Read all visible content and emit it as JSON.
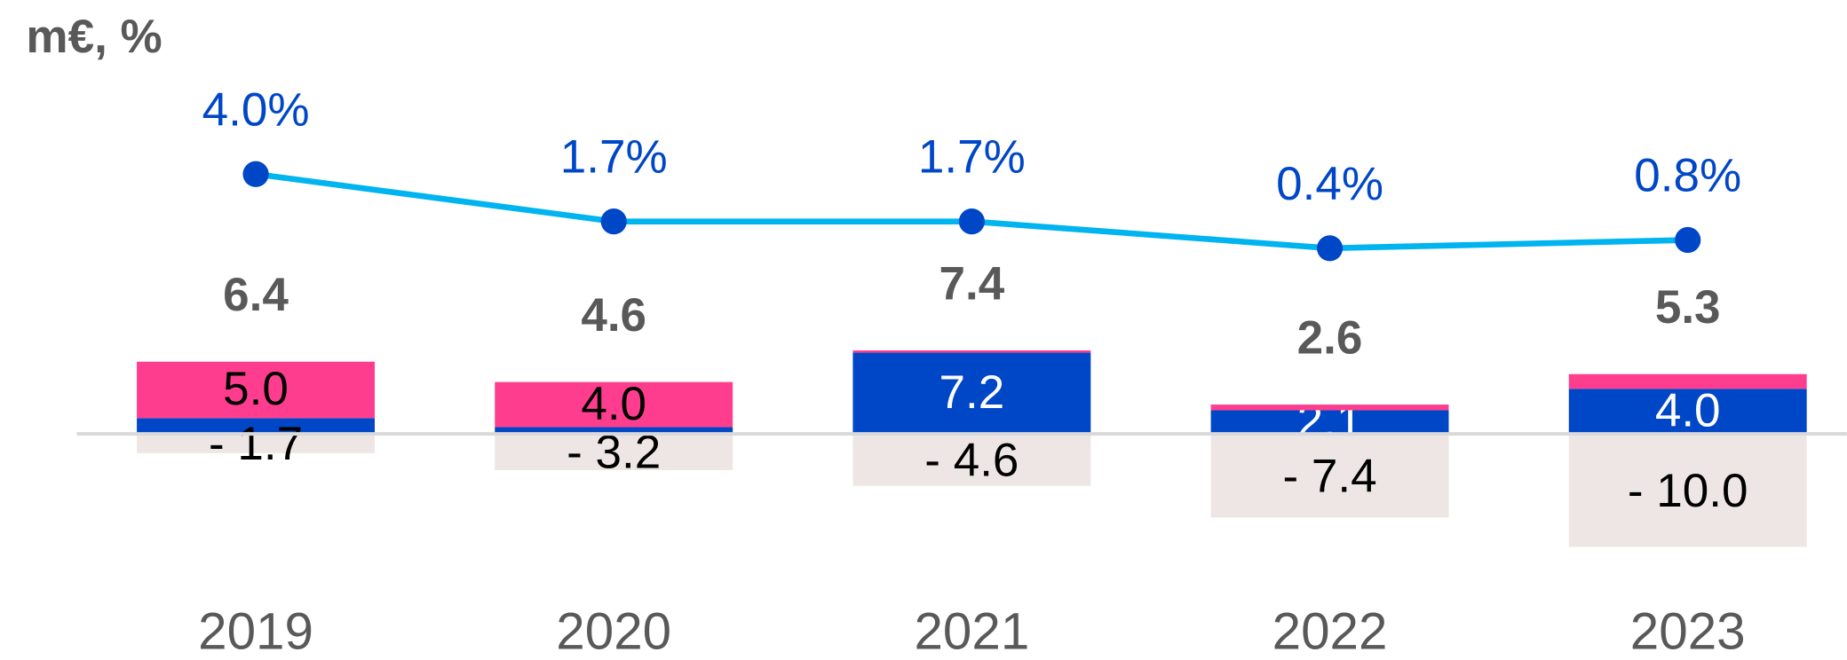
{
  "chart_data": {
    "type": "stacked-bar-line",
    "title": "m€, %",
    "categories": [
      "2019",
      "2020",
      "2021",
      "2022",
      "2023"
    ],
    "series": [
      {
        "name": "blue",
        "color": "#0047c8",
        "values": [
          1.4,
          0.6,
          7.2,
          2.1,
          4.0
        ],
        "value_labels": [
          null,
          null,
          "7.2",
          "2.1",
          "4.0"
        ]
      },
      {
        "name": "pink",
        "color": "#ff3d8f",
        "values": [
          5.0,
          4.0,
          0.2,
          0.5,
          1.3
        ],
        "value_labels": [
          "5.0",
          "4.0",
          null,
          null,
          null
        ]
      },
      {
        "name": "negative",
        "color": "#ede6e4",
        "values": [
          -1.7,
          -3.2,
          -4.6,
          -7.4,
          -10.0
        ],
        "value_labels": [
          "- 1.7",
          "- 3.2",
          "- 4.6",
          "- 7.4",
          "- 10.0"
        ]
      },
      {
        "name": "margin",
        "type": "line",
        "axis": "y2",
        "color": "#00b4f0",
        "marker_color": "#0047c8",
        "values": [
          4.0,
          1.7,
          1.7,
          0.4,
          0.8
        ],
        "value_labels": [
          "4.0%",
          "1.7%",
          "1.7%",
          "0.4%",
          "0.8%"
        ]
      }
    ],
    "totals": [
      6.4,
      4.6,
      7.4,
      2.6,
      5.3
    ],
    "ylim": [
      -12,
      35
    ],
    "y2lim": [
      -15.2,
      10.57
    ]
  }
}
